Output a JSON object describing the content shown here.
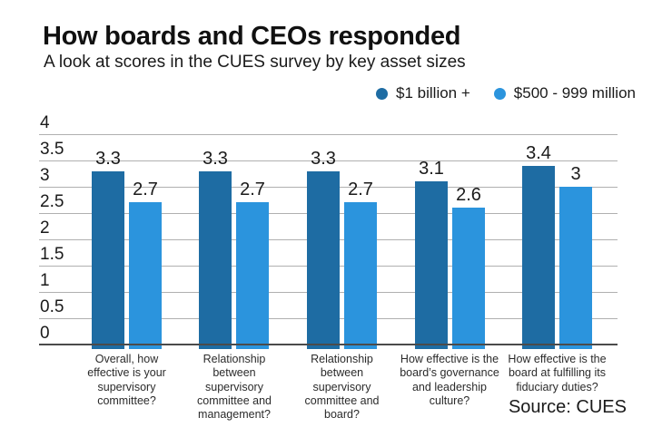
{
  "page": {
    "title": "How boards and CEOs responded",
    "subtitle": "A look at scores in the CUES survey by key asset sizes",
    "source": "Source: CUES"
  },
  "colors": {
    "series1": "#1e6ca3",
    "series2": "#2b94dd",
    "gridline": "#b0b0b0",
    "axis": "#4b4b4b",
    "text": "#1a1a1a"
  },
  "chart_data": {
    "type": "bar",
    "title": "How boards and CEOs responded",
    "subtitle": "A look at scores in the CUES survey by key asset sizes",
    "categories": [
      "Overall, how effective is your supervisory committee?",
      "Relationship between supervisory committee and management?",
      "Relationship between supervisory committee and board?",
      "How effective is the board’s governance and leadership culture?",
      "How effective is the board at fulfilling its fiduciary duties?"
    ],
    "series": [
      {
        "name": "$1 billion +",
        "color": "#1e6ca3",
        "values": [
          3.3,
          3.3,
          3.3,
          3.1,
          3.4
        ]
      },
      {
        "name": "$500 - 999 million",
        "color": "#2b94dd",
        "values": [
          2.7,
          2.7,
          2.7,
          2.6,
          3
        ]
      }
    ],
    "ylim": [
      0,
      4
    ],
    "yticks": [
      4,
      3.5,
      3,
      2.5,
      2,
      1.5,
      1,
      0.5,
      0
    ],
    "grid": true,
    "legend_position": "top",
    "source": "Source: CUES"
  }
}
